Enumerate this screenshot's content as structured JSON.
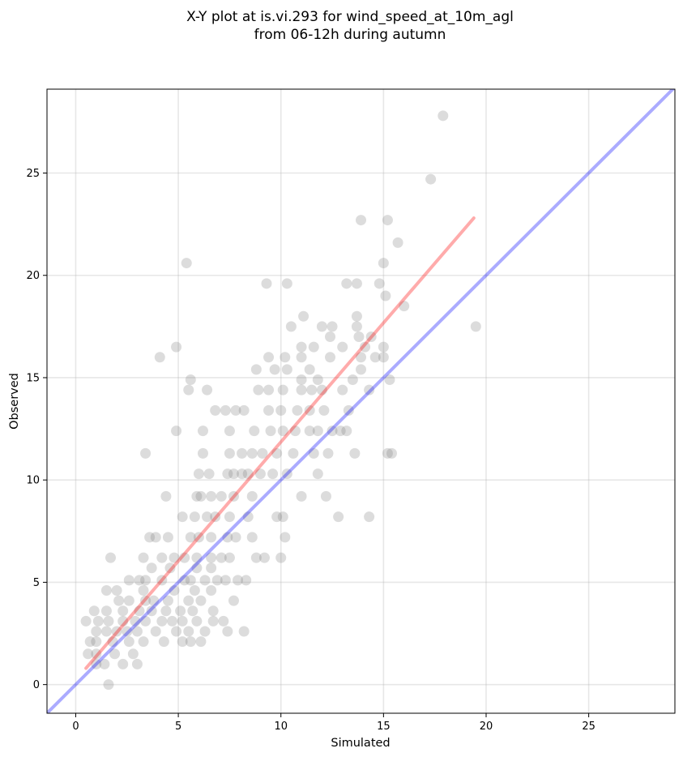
{
  "chart_data": {
    "type": "scatter",
    "title_lines": [
      "X-Y plot at is.vi.293 for wind_speed_at_10m_agl",
      "from 06-12h during autumn"
    ],
    "xlabel": "Simulated",
    "ylabel": "Observed",
    "xlim": [
      -1.4,
      29.2
    ],
    "ylim": [
      -1.4,
      29.1
    ],
    "xticks": [
      0,
      5,
      10,
      15,
      20,
      25
    ],
    "yticks": [
      0,
      5,
      10,
      15,
      20,
      25
    ],
    "grid": true,
    "point_color": "#808080",
    "series": [
      {
        "values": [
          [
            1.6,
            0.0
          ],
          [
            1.0,
            1.0
          ],
          [
            1.4,
            1.0
          ],
          [
            2.3,
            1.0
          ],
          [
            3.0,
            1.0
          ],
          [
            0.6,
            1.5
          ],
          [
            1.0,
            1.5
          ],
          [
            1.9,
            1.5
          ],
          [
            2.8,
            1.5
          ],
          [
            0.7,
            2.1
          ],
          [
            1.0,
            2.1
          ],
          [
            1.8,
            2.1
          ],
          [
            2.6,
            2.1
          ],
          [
            3.3,
            2.1
          ],
          [
            4.3,
            2.1
          ],
          [
            5.2,
            2.1
          ],
          [
            5.6,
            2.1
          ],
          [
            6.1,
            2.1
          ],
          [
            1.0,
            2.6
          ],
          [
            1.5,
            2.6
          ],
          [
            2.0,
            2.6
          ],
          [
            2.5,
            2.6
          ],
          [
            3.0,
            2.6
          ],
          [
            3.9,
            2.6
          ],
          [
            4.9,
            2.6
          ],
          [
            5.5,
            2.6
          ],
          [
            6.3,
            2.6
          ],
          [
            7.4,
            2.6
          ],
          [
            8.2,
            2.6
          ],
          [
            0.5,
            3.1
          ],
          [
            1.1,
            3.1
          ],
          [
            1.6,
            3.1
          ],
          [
            2.3,
            3.1
          ],
          [
            2.9,
            3.1
          ],
          [
            3.4,
            3.1
          ],
          [
            4.2,
            3.1
          ],
          [
            4.7,
            3.1
          ],
          [
            5.2,
            3.1
          ],
          [
            5.9,
            3.1
          ],
          [
            6.7,
            3.1
          ],
          [
            7.2,
            3.1
          ],
          [
            0.9,
            3.6
          ],
          [
            1.5,
            3.6
          ],
          [
            2.3,
            3.6
          ],
          [
            3.1,
            3.6
          ],
          [
            3.7,
            3.6
          ],
          [
            4.4,
            3.6
          ],
          [
            5.1,
            3.6
          ],
          [
            5.7,
            3.6
          ],
          [
            6.7,
            3.6
          ],
          [
            2.1,
            4.1
          ],
          [
            2.6,
            4.1
          ],
          [
            3.4,
            4.1
          ],
          [
            3.8,
            4.1
          ],
          [
            4.5,
            4.1
          ],
          [
            5.5,
            4.1
          ],
          [
            6.1,
            4.1
          ],
          [
            7.7,
            4.1
          ],
          [
            1.5,
            4.6
          ],
          [
            2.0,
            4.6
          ],
          [
            3.3,
            4.6
          ],
          [
            4.8,
            4.6
          ],
          [
            5.8,
            4.6
          ],
          [
            6.6,
            4.6
          ],
          [
            2.6,
            5.1
          ],
          [
            3.1,
            5.1
          ],
          [
            3.4,
            5.1
          ],
          [
            4.2,
            5.1
          ],
          [
            5.3,
            5.1
          ],
          [
            5.6,
            5.1
          ],
          [
            6.3,
            5.1
          ],
          [
            6.9,
            5.1
          ],
          [
            7.3,
            5.1
          ],
          [
            7.9,
            5.1
          ],
          [
            8.3,
            5.1
          ],
          [
            3.7,
            5.7
          ],
          [
            4.6,
            5.7
          ],
          [
            5.9,
            5.7
          ],
          [
            6.6,
            5.7
          ],
          [
            1.7,
            6.2
          ],
          [
            3.3,
            6.2
          ],
          [
            4.2,
            6.2
          ],
          [
            4.8,
            6.2
          ],
          [
            5.3,
            6.2
          ],
          [
            5.9,
            6.2
          ],
          [
            6.6,
            6.2
          ],
          [
            7.1,
            6.2
          ],
          [
            7.5,
            6.2
          ],
          [
            8.8,
            6.2
          ],
          [
            9.2,
            6.2
          ],
          [
            10.0,
            6.2
          ],
          [
            3.6,
            7.2
          ],
          [
            3.9,
            7.2
          ],
          [
            4.5,
            7.2
          ],
          [
            5.6,
            7.2
          ],
          [
            6.0,
            7.2
          ],
          [
            6.6,
            7.2
          ],
          [
            7.4,
            7.2
          ],
          [
            7.8,
            7.2
          ],
          [
            8.6,
            7.2
          ],
          [
            10.2,
            7.2
          ],
          [
            5.2,
            8.2
          ],
          [
            5.8,
            8.2
          ],
          [
            6.4,
            8.2
          ],
          [
            6.8,
            8.2
          ],
          [
            7.5,
            8.2
          ],
          [
            8.4,
            8.2
          ],
          [
            9.8,
            8.2
          ],
          [
            10.1,
            8.2
          ],
          [
            12.8,
            8.2
          ],
          [
            14.3,
            8.2
          ],
          [
            4.4,
            9.2
          ],
          [
            5.9,
            9.2
          ],
          [
            6.1,
            9.2
          ],
          [
            6.6,
            9.2
          ],
          [
            7.1,
            9.2
          ],
          [
            7.7,
            9.2
          ],
          [
            8.6,
            9.2
          ],
          [
            11.0,
            9.2
          ],
          [
            12.2,
            9.2
          ],
          [
            6.0,
            10.3
          ],
          [
            6.5,
            10.3
          ],
          [
            7.4,
            10.3
          ],
          [
            7.7,
            10.3
          ],
          [
            8.1,
            10.3
          ],
          [
            8.4,
            10.3
          ],
          [
            9.0,
            10.3
          ],
          [
            9.6,
            10.3
          ],
          [
            10.3,
            10.3
          ],
          [
            11.8,
            10.3
          ],
          [
            3.4,
            11.3
          ],
          [
            6.2,
            11.3
          ],
          [
            7.5,
            11.3
          ],
          [
            8.1,
            11.3
          ],
          [
            8.6,
            11.3
          ],
          [
            9.1,
            11.3
          ],
          [
            9.8,
            11.3
          ],
          [
            10.6,
            11.3
          ],
          [
            11.6,
            11.3
          ],
          [
            12.3,
            11.3
          ],
          [
            13.6,
            11.3
          ],
          [
            15.2,
            11.3
          ],
          [
            15.4,
            11.3
          ],
          [
            4.9,
            12.4
          ],
          [
            6.2,
            12.4
          ],
          [
            7.5,
            12.4
          ],
          [
            8.7,
            12.4
          ],
          [
            9.5,
            12.4
          ],
          [
            10.1,
            12.4
          ],
          [
            10.7,
            12.4
          ],
          [
            11.4,
            12.4
          ],
          [
            11.8,
            12.4
          ],
          [
            12.5,
            12.4
          ],
          [
            12.9,
            12.4
          ],
          [
            13.2,
            12.4
          ],
          [
            6.8,
            13.4
          ],
          [
            7.3,
            13.4
          ],
          [
            7.8,
            13.4
          ],
          [
            8.2,
            13.4
          ],
          [
            9.4,
            13.4
          ],
          [
            10.0,
            13.4
          ],
          [
            10.8,
            13.4
          ],
          [
            11.4,
            13.4
          ],
          [
            12.1,
            13.4
          ],
          [
            13.3,
            13.4
          ],
          [
            5.5,
            14.4
          ],
          [
            6.4,
            14.4
          ],
          [
            8.9,
            14.4
          ],
          [
            9.4,
            14.4
          ],
          [
            10.1,
            14.4
          ],
          [
            11.0,
            14.4
          ],
          [
            11.5,
            14.4
          ],
          [
            12.0,
            14.4
          ],
          [
            13.0,
            14.4
          ],
          [
            14.3,
            14.4
          ],
          [
            5.6,
            14.9
          ],
          [
            11.0,
            14.9
          ],
          [
            11.8,
            14.9
          ],
          [
            13.5,
            14.9
          ],
          [
            15.3,
            14.9
          ],
          [
            8.8,
            15.4
          ],
          [
            9.7,
            15.4
          ],
          [
            10.3,
            15.4
          ],
          [
            11.4,
            15.4
          ],
          [
            13.9,
            15.4
          ],
          [
            4.1,
            16.0
          ],
          [
            9.4,
            16.0
          ],
          [
            10.2,
            16.0
          ],
          [
            11.0,
            16.0
          ],
          [
            12.4,
            16.0
          ],
          [
            13.9,
            16.0
          ],
          [
            14.6,
            16.0
          ],
          [
            15.0,
            16.0
          ],
          [
            4.9,
            16.5
          ],
          [
            11.0,
            16.5
          ],
          [
            11.6,
            16.5
          ],
          [
            13.0,
            16.5
          ],
          [
            14.1,
            16.5
          ],
          [
            15.0,
            16.5
          ],
          [
            13.8,
            17.0
          ],
          [
            14.4,
            17.0
          ],
          [
            12.4,
            17.0
          ],
          [
            10.5,
            17.5
          ],
          [
            12.0,
            17.5
          ],
          [
            12.5,
            17.5
          ],
          [
            13.7,
            17.5
          ],
          [
            16.0,
            18.5
          ],
          [
            19.5,
            17.5
          ],
          [
            11.1,
            18.0
          ],
          [
            13.7,
            18.0
          ],
          [
            15.1,
            19.0
          ],
          [
            9.3,
            19.6
          ],
          [
            10.3,
            19.6
          ],
          [
            13.2,
            19.6
          ],
          [
            13.7,
            19.6
          ],
          [
            14.8,
            19.6
          ],
          [
            5.4,
            20.6
          ],
          [
            15.0,
            20.6
          ],
          [
            15.7,
            21.6
          ],
          [
            13.9,
            22.7
          ],
          [
            15.2,
            22.7
          ],
          [
            17.3,
            24.7
          ],
          [
            17.9,
            27.8
          ]
        ]
      }
    ],
    "lines": [
      {
        "type": "fit",
        "color": "#ff0000",
        "x": [
          0.5,
          19.4
        ],
        "y": [
          0.8,
          22.8
        ]
      },
      {
        "type": "one-to-one",
        "color": "#0000ff",
        "x": [
          -1.4,
          29.2
        ],
        "y": [
          -1.4,
          29.2
        ]
      }
    ]
  }
}
